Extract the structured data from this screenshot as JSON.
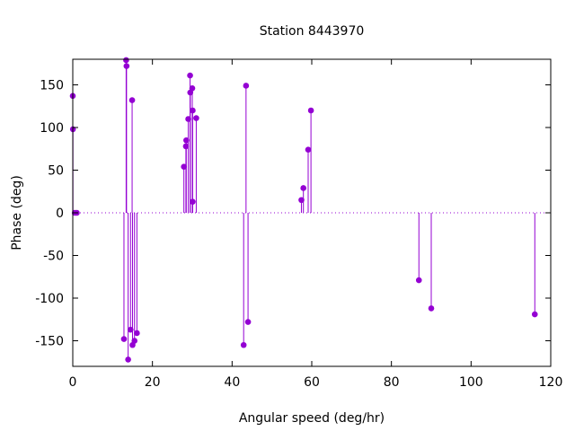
{
  "chart_data": {
    "type": "scatter",
    "style": "impulses",
    "title": "Station 8443970",
    "xlabel": "Angular speed (deg/hr)",
    "ylabel": "Phase (deg)",
    "xlim": [
      0,
      120
    ],
    "ylim": [
      -180,
      180
    ],
    "xticks": [
      0,
      20,
      40,
      60,
      80,
      100,
      120
    ],
    "yticks": [
      -150,
      -100,
      -50,
      0,
      50,
      100,
      150
    ],
    "grid": false,
    "zero_line": true,
    "color": "#9400d3",
    "points": [
      {
        "x": 0.0,
        "y": 137
      },
      {
        "x": 0.04,
        "y": 98
      },
      {
        "x": 0.5,
        "y": 0
      },
      {
        "x": 1.0,
        "y": 0
      },
      {
        "x": 12.85,
        "y": -148
      },
      {
        "x": 13.4,
        "y": 179
      },
      {
        "x": 13.5,
        "y": 172
      },
      {
        "x": 13.9,
        "y": -172
      },
      {
        "x": 14.5,
        "y": -137
      },
      {
        "x": 14.9,
        "y": 132
      },
      {
        "x": 15.0,
        "y": -155
      },
      {
        "x": 15.5,
        "y": -150
      },
      {
        "x": 16.1,
        "y": -141
      },
      {
        "x": 27.9,
        "y": 54
      },
      {
        "x": 28.4,
        "y": 78
      },
      {
        "x": 28.5,
        "y": 85
      },
      {
        "x": 29.0,
        "y": 110
      },
      {
        "x": 29.45,
        "y": 161
      },
      {
        "x": 29.5,
        "y": 141
      },
      {
        "x": 30.0,
        "y": 146
      },
      {
        "x": 30.1,
        "y": 120
      },
      {
        "x": 30.1,
        "y": 13
      },
      {
        "x": 31.0,
        "y": 111
      },
      {
        "x": 42.9,
        "y": -155
      },
      {
        "x": 43.5,
        "y": 149
      },
      {
        "x": 44.0,
        "y": -128
      },
      {
        "x": 57.4,
        "y": 15
      },
      {
        "x": 57.9,
        "y": 29
      },
      {
        "x": 59.1,
        "y": 74
      },
      {
        "x": 59.8,
        "y": 120
      },
      {
        "x": 86.9,
        "y": -79
      },
      {
        "x": 90.0,
        "y": -112
      },
      {
        "x": 116.0,
        "y": -119
      }
    ]
  }
}
